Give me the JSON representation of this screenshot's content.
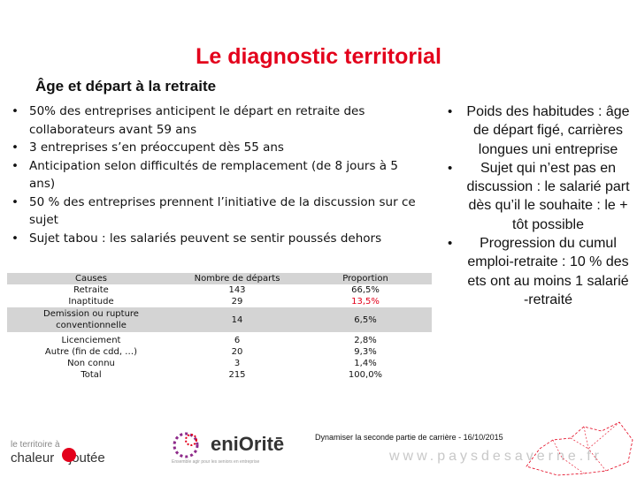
{
  "title": "Le diagnostic territorial",
  "subtitle": "Âge et départ à la retraite",
  "left_bullets": [
    "50% des entreprises anticipent le départ en retraite des collaborateurs avant 59 ans",
    "3 entreprises s’en préoccupent dès 55 ans",
    "Anticipation selon difficultés de remplacement (de 8 jours à 5 ans)",
    "50 % des entreprises prennent l’initiative de la discussion sur ce sujet",
    "Sujet tabou : les salariés peuvent se sentir poussés dehors"
  ],
  "table": {
    "headers": [
      "Causes",
      "Nombre de départs",
      "Proportion"
    ],
    "rows": [
      [
        "Retraite",
        "143",
        "66,5%"
      ],
      [
        "Inaptitude",
        "29",
        "13,5%"
      ],
      [
        "Demission ou rupture conventionnelle",
        "14",
        "6,5%"
      ],
      [
        "Licenciement",
        "6",
        "2,8%"
      ],
      [
        "Autre (fin de cdd, …)",
        "20",
        "9,3%"
      ],
      [
        "Non connu",
        "3",
        "1,4%"
      ],
      [
        "Total",
        "215",
        "100,0%"
      ]
    ],
    "highlight_color": "#e3001b"
  },
  "right_bullets": [
    "Poids des habitudes : âge de départ figé, carrières longues uni entreprise",
    "Sujet qui n’est pas en discussion : le salarié part dès qu’il le souhaite : le + tôt possible",
    "Progression du cumul emploi-retraite : 10 % des ets ont au moins 1 salarié -retraité"
  ],
  "footer": "Dynamiser la seconde partie de carrière - 16/10/2015",
  "logo_left": {
    "line1": "le territoire à",
    "line2": "chaleur",
    "line2b": "joutée"
  },
  "logo_mid": {
    "word": "eniOritē",
    "tagline": "Ensemble agir pour les seniors en entreprise"
  },
  "url": "www.paysdesaverne.fr",
  "colors": {
    "title": "#e3001b",
    "table_band": "#d4d4d4"
  }
}
